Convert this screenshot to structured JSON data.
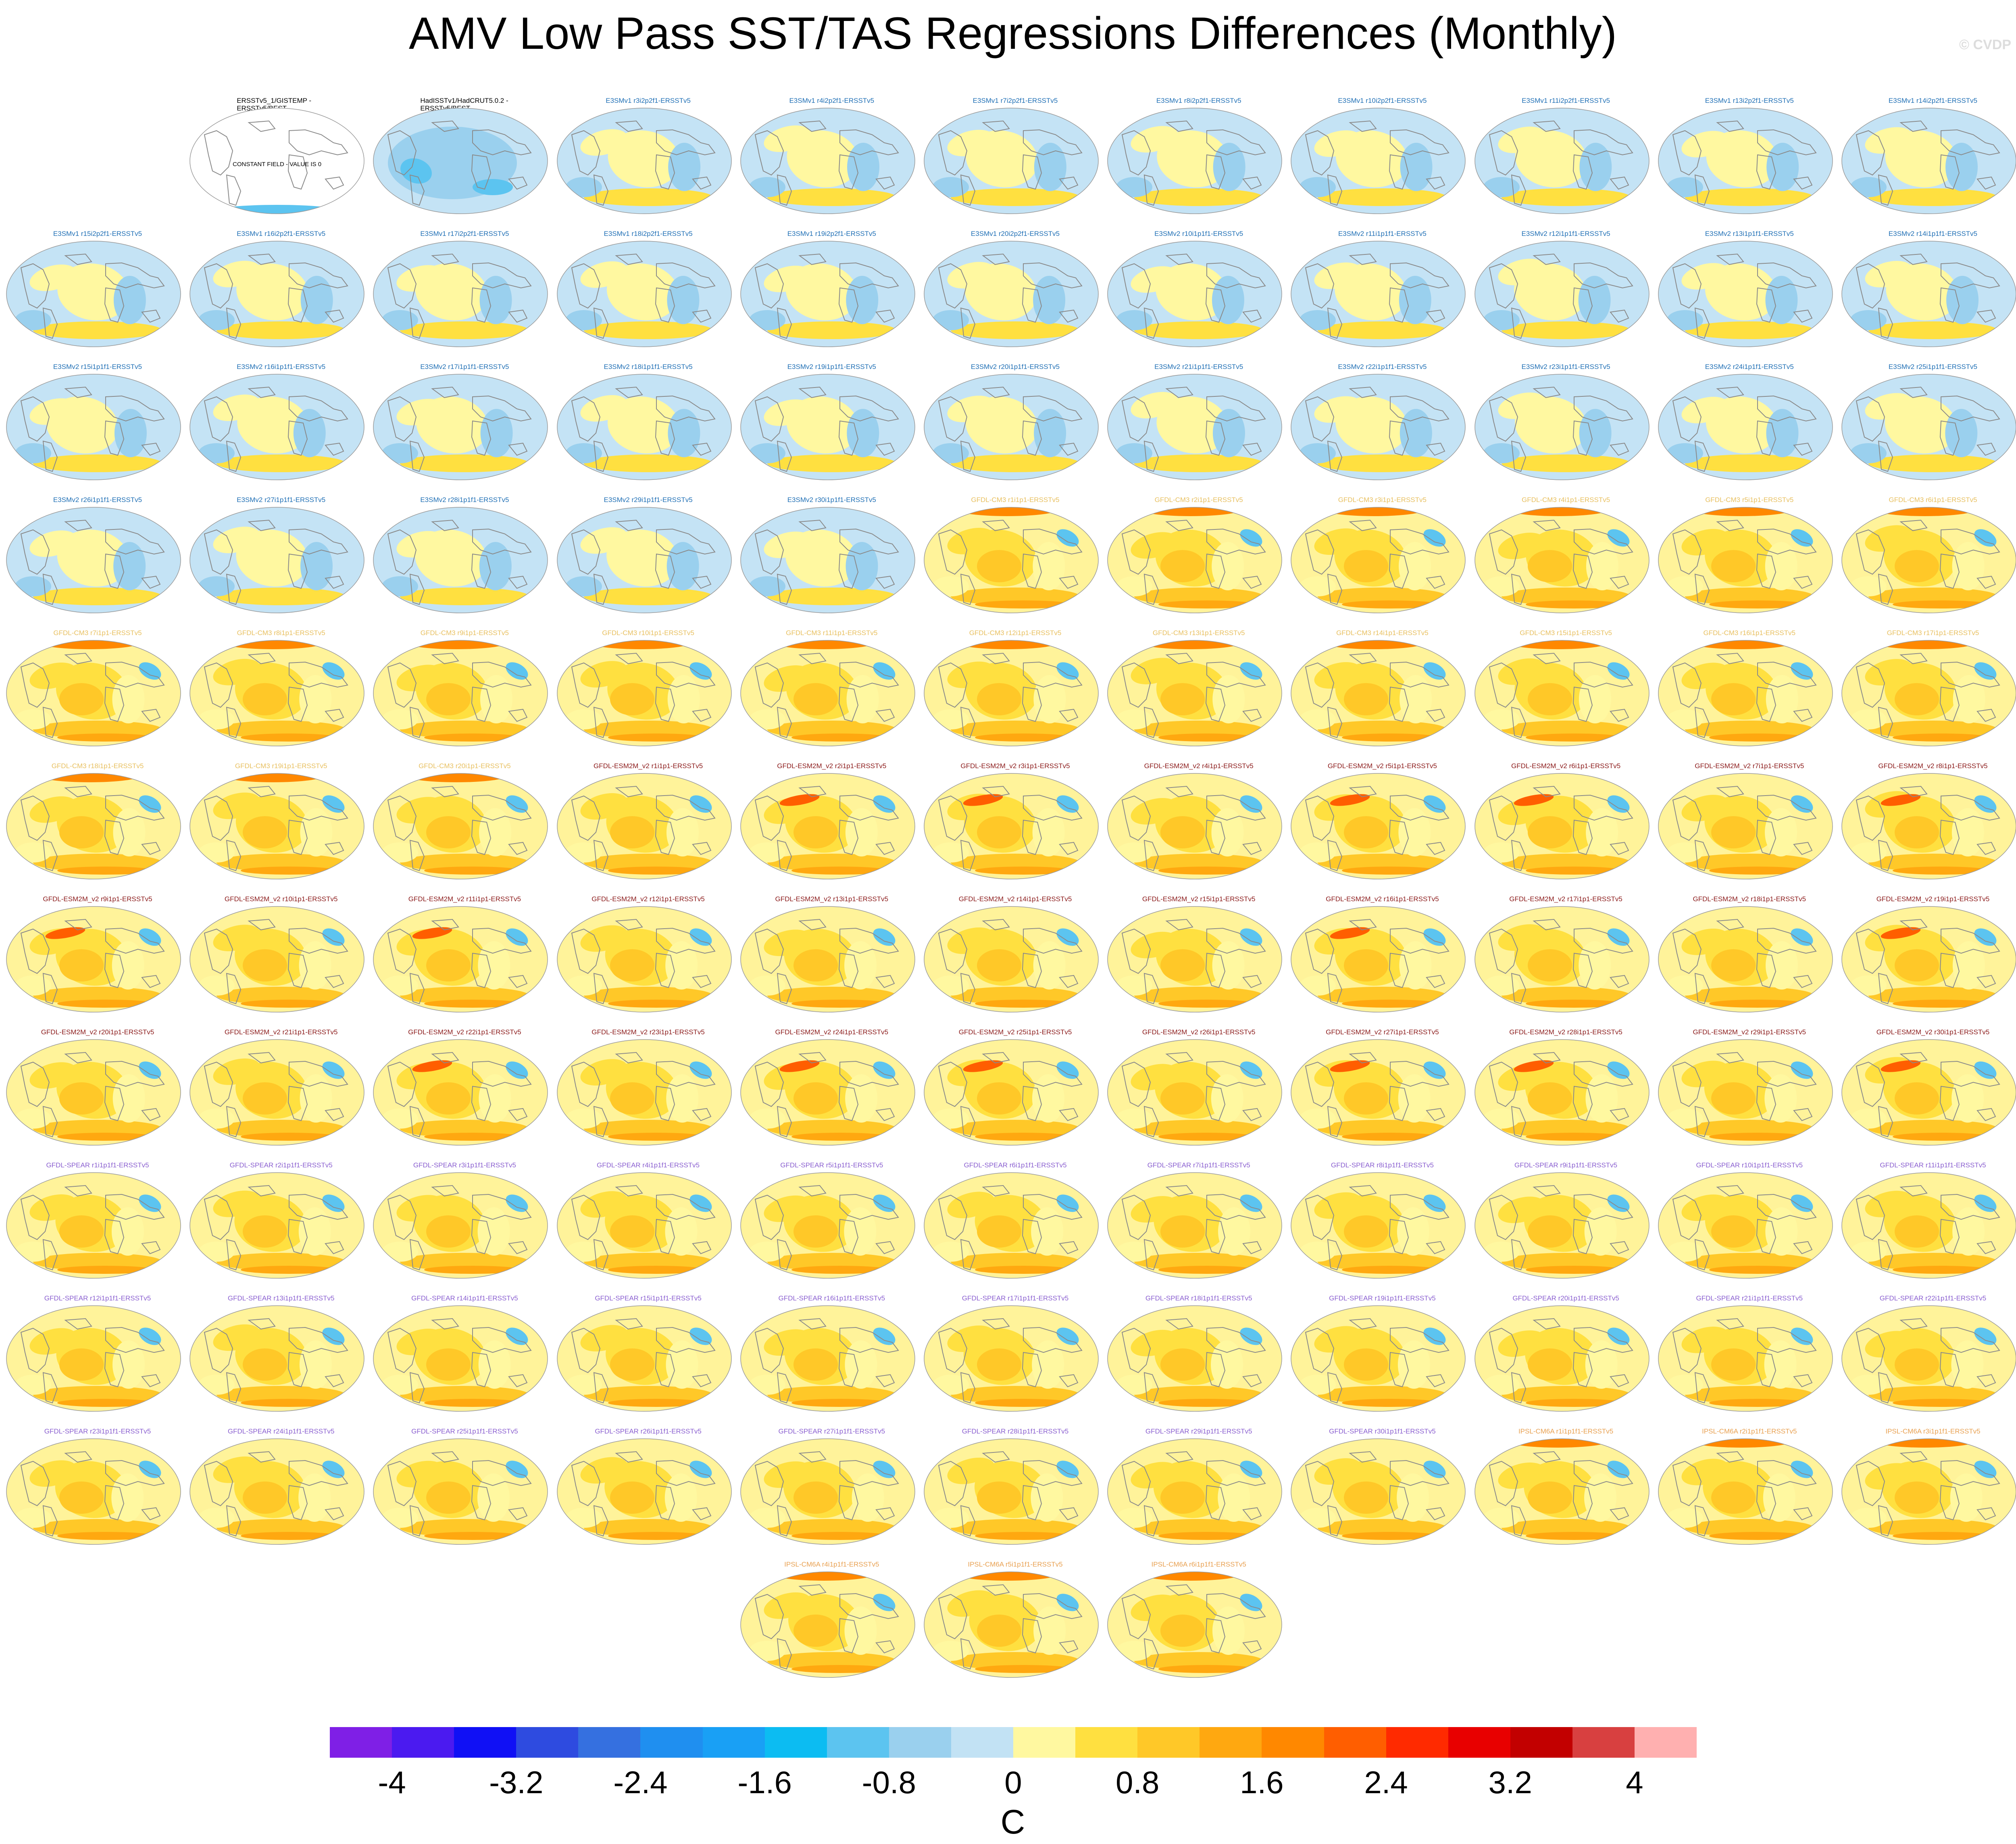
{
  "title": "AMV Low Pass SST/TAS Regressions Differences (Monthly)",
  "watermark": "© CVDP",
  "colors": {
    "e3sm": "#1f6fb5",
    "gfdl_cm3": "#e8c060",
    "gfdl_esm2m": "#8b1a1a",
    "gfdl_spear": "#8a5fd0",
    "ipsl": "#e8a050",
    "obs": "#000000"
  },
  "panels": [
    {
      "label": "ERSSTv5_1/GISTEMP - ERSSTv5/BEST",
      "group": "obs",
      "note": "CONSTANT FIELD - VALUE IS 0"
    },
    {
      "label": "HadISSTv1/HadCRUT5.0.2 - ERSSTv5/BEST",
      "group": "obs"
    },
    {
      "label": "E3SMv1 r3i2p2f1-ERSSTv5",
      "group": "e3sm"
    },
    {
      "label": "E3SMv1 r4i2p2f1-ERSSTv5",
      "group": "e3sm"
    },
    {
      "label": "E3SMv1 r7i2p2f1-ERSSTv5",
      "group": "e3sm"
    },
    {
      "label": "E3SMv1 r8i2p2f1-ERSSTv5",
      "group": "e3sm"
    },
    {
      "label": "E3SMv1 r10i2p2f1-ERSSTv5",
      "group": "e3sm"
    },
    {
      "label": "E3SMv1 r11i2p2f1-ERSSTv5",
      "group": "e3sm"
    },
    {
      "label": "E3SMv1 r13i2p2f1-ERSSTv5",
      "group": "e3sm"
    },
    {
      "label": "E3SMv1 r14i2p2f1-ERSSTv5",
      "group": "e3sm"
    },
    {
      "label": "E3SMv1 r15i2p2f1-ERSSTv5",
      "group": "e3sm"
    },
    {
      "label": "E3SMv1 r16i2p2f1-ERSSTv5",
      "group": "e3sm"
    },
    {
      "label": "E3SMv1 r17i2p2f1-ERSSTv5",
      "group": "e3sm"
    },
    {
      "label": "E3SMv1 r18i2p2f1-ERSSTv5",
      "group": "e3sm"
    },
    {
      "label": "E3SMv1 r19i2p2f1-ERSSTv5",
      "group": "e3sm"
    },
    {
      "label": "E3SMv1 r20i2p2f1-ERSSTv5",
      "group": "e3sm"
    },
    {
      "label": "E3SMv2 r10i1p1f1-ERSSTv5",
      "group": "e3sm"
    },
    {
      "label": "E3SMv2 r11i1p1f1-ERSSTv5",
      "group": "e3sm"
    },
    {
      "label": "E3SMv2 r12i1p1f1-ERSSTv5",
      "group": "e3sm"
    },
    {
      "label": "E3SMv2 r13i1p1f1-ERSSTv5",
      "group": "e3sm"
    },
    {
      "label": "E3SMv2 r14i1p1f1-ERSSTv5",
      "group": "e3sm"
    },
    {
      "label": "E3SMv2 r15i1p1f1-ERSSTv5",
      "group": "e3sm"
    },
    {
      "label": "E3SMv2 r16i1p1f1-ERSSTv5",
      "group": "e3sm"
    },
    {
      "label": "E3SMv2 r17i1p1f1-ERSSTv5",
      "group": "e3sm"
    },
    {
      "label": "E3SMv2 r18i1p1f1-ERSSTv5",
      "group": "e3sm"
    },
    {
      "label": "E3SMv2 r19i1p1f1-ERSSTv5",
      "group": "e3sm"
    },
    {
      "label": "E3SMv2 r20i1p1f1-ERSSTv5",
      "group": "e3sm"
    },
    {
      "label": "E3SMv2 r21i1p1f1-ERSSTv5",
      "group": "e3sm"
    },
    {
      "label": "E3SMv2 r22i1p1f1-ERSSTv5",
      "group": "e3sm"
    },
    {
      "label": "E3SMv2 r23i1p1f1-ERSSTv5",
      "group": "e3sm"
    },
    {
      "label": "E3SMv2 r24i1p1f1-ERSSTv5",
      "group": "e3sm"
    },
    {
      "label": "E3SMv2 r25i1p1f1-ERSSTv5",
      "group": "e3sm"
    },
    {
      "label": "E3SMv2 r26i1p1f1-ERSSTv5",
      "group": "e3sm"
    },
    {
      "label": "E3SMv2 r27i1p1f1-ERSSTv5",
      "group": "e3sm"
    },
    {
      "label": "E3SMv2 r28i1p1f1-ERSSTv5",
      "group": "e3sm"
    },
    {
      "label": "E3SMv2 r29i1p1f1-ERSSTv5",
      "group": "e3sm"
    },
    {
      "label": "E3SMv2 r30i1p1f1-ERSSTv5",
      "group": "e3sm"
    },
    {
      "label": "GFDL-CM3 r1i1p1-ERSSTv5",
      "group": "gfdl_cm3"
    },
    {
      "label": "GFDL-CM3 r2i1p1-ERSSTv5",
      "group": "gfdl_cm3"
    },
    {
      "label": "GFDL-CM3 r3i1p1-ERSSTv5",
      "group": "gfdl_cm3"
    },
    {
      "label": "GFDL-CM3 r4i1p1-ERSSTv5",
      "group": "gfdl_cm3"
    },
    {
      "label": "GFDL-CM3 r5i1p1-ERSSTv5",
      "group": "gfdl_cm3"
    },
    {
      "label": "GFDL-CM3 r6i1p1-ERSSTv5",
      "group": "gfdl_cm3"
    },
    {
      "label": "GFDL-CM3 r7i1p1-ERSSTv5",
      "group": "gfdl_cm3"
    },
    {
      "label": "GFDL-CM3 r8i1p1-ERSSTv5",
      "group": "gfdl_cm3"
    },
    {
      "label": "GFDL-CM3 r9i1p1-ERSSTv5",
      "group": "gfdl_cm3"
    },
    {
      "label": "GFDL-CM3 r10i1p1-ERSSTv5",
      "group": "gfdl_cm3"
    },
    {
      "label": "GFDL-CM3 r11i1p1-ERSSTv5",
      "group": "gfdl_cm3"
    },
    {
      "label": "GFDL-CM3 r12i1p1-ERSSTv5",
      "group": "gfdl_cm3"
    },
    {
      "label": "GFDL-CM3 r13i1p1-ERSSTv5",
      "group": "gfdl_cm3"
    },
    {
      "label": "GFDL-CM3 r14i1p1-ERSSTv5",
      "group": "gfdl_cm3"
    },
    {
      "label": "GFDL-CM3 r15i1p1-ERSSTv5",
      "group": "gfdl_cm3"
    },
    {
      "label": "GFDL-CM3 r16i1p1-ERSSTv5",
      "group": "gfdl_cm3"
    },
    {
      "label": "GFDL-CM3 r17i1p1-ERSSTv5",
      "group": "gfdl_cm3"
    },
    {
      "label": "GFDL-CM3 r18i1p1-ERSSTv5",
      "group": "gfdl_cm3"
    },
    {
      "label": "GFDL-CM3 r19i1p1-ERSSTv5",
      "group": "gfdl_cm3"
    },
    {
      "label": "GFDL-CM3 r20i1p1-ERSSTv5",
      "group": "gfdl_cm3"
    },
    {
      "label": "GFDL-ESM2M_v2 r1i1p1-ERSSTv5",
      "group": "gfdl_esm2m"
    },
    {
      "label": "GFDL-ESM2M_v2 r2i1p1-ERSSTv5",
      "group": "gfdl_esm2m"
    },
    {
      "label": "GFDL-ESM2M_v2 r3i1p1-ERSSTv5",
      "group": "gfdl_esm2m"
    },
    {
      "label": "GFDL-ESM2M_v2 r4i1p1-ERSSTv5",
      "group": "gfdl_esm2m"
    },
    {
      "label": "GFDL-ESM2M_v2 r5i1p1-ERSSTv5",
      "group": "gfdl_esm2m"
    },
    {
      "label": "GFDL-ESM2M_v2 r6i1p1-ERSSTv5",
      "group": "gfdl_esm2m"
    },
    {
      "label": "GFDL-ESM2M_v2 r7i1p1-ERSSTv5",
      "group": "gfdl_esm2m"
    },
    {
      "label": "GFDL-ESM2M_v2 r8i1p1-ERSSTv5",
      "group": "gfdl_esm2m"
    },
    {
      "label": "GFDL-ESM2M_v2 r9i1p1-ERSSTv5",
      "group": "gfdl_esm2m"
    },
    {
      "label": "GFDL-ESM2M_v2 r10i1p1-ERSSTv5",
      "group": "gfdl_esm2m"
    },
    {
      "label": "GFDL-ESM2M_v2 r11i1p1-ERSSTv5",
      "group": "gfdl_esm2m"
    },
    {
      "label": "GFDL-ESM2M_v2 r12i1p1-ERSSTv5",
      "group": "gfdl_esm2m"
    },
    {
      "label": "GFDL-ESM2M_v2 r13i1p1-ERSSTv5",
      "group": "gfdl_esm2m"
    },
    {
      "label": "GFDL-ESM2M_v2 r14i1p1-ERSSTv5",
      "group": "gfdl_esm2m"
    },
    {
      "label": "GFDL-ESM2M_v2 r15i1p1-ERSSTv5",
      "group": "gfdl_esm2m"
    },
    {
      "label": "GFDL-ESM2M_v2 r16i1p1-ERSSTv5",
      "group": "gfdl_esm2m"
    },
    {
      "label": "GFDL-ESM2M_v2 r17i1p1-ERSSTv5",
      "group": "gfdl_esm2m"
    },
    {
      "label": "GFDL-ESM2M_v2 r18i1p1-ERSSTv5",
      "group": "gfdl_esm2m"
    },
    {
      "label": "GFDL-ESM2M_v2 r19i1p1-ERSSTv5",
      "group": "gfdl_esm2m"
    },
    {
      "label": "GFDL-ESM2M_v2 r20i1p1-ERSSTv5",
      "group": "gfdl_esm2m"
    },
    {
      "label": "GFDL-ESM2M_v2 r21i1p1-ERSSTv5",
      "group": "gfdl_esm2m"
    },
    {
      "label": "GFDL-ESM2M_v2 r22i1p1-ERSSTv5",
      "group": "gfdl_esm2m"
    },
    {
      "label": "GFDL-ESM2M_v2 r23i1p1-ERSSTv5",
      "group": "gfdl_esm2m"
    },
    {
      "label": "GFDL-ESM2M_v2 r24i1p1-ERSSTv5",
      "group": "gfdl_esm2m"
    },
    {
      "label": "GFDL-ESM2M_v2 r25i1p1-ERSSTv5",
      "group": "gfdl_esm2m"
    },
    {
      "label": "GFDL-ESM2M_v2 r26i1p1-ERSSTv5",
      "group": "gfdl_esm2m"
    },
    {
      "label": "GFDL-ESM2M_v2 r27i1p1-ERSSTv5",
      "group": "gfdl_esm2m"
    },
    {
      "label": "GFDL-ESM2M_v2 r28i1p1-ERSSTv5",
      "group": "gfdl_esm2m"
    },
    {
      "label": "GFDL-ESM2M_v2 r29i1p1-ERSSTv5",
      "group": "gfdl_esm2m"
    },
    {
      "label": "GFDL-ESM2M_v2 r30i1p1-ERSSTv5",
      "group": "gfdl_esm2m"
    },
    {
      "label": "GFDL-SPEAR r1i1p1f1-ERSSTv5",
      "group": "gfdl_spear"
    },
    {
      "label": "GFDL-SPEAR r2i1p1f1-ERSSTv5",
      "group": "gfdl_spear"
    },
    {
      "label": "GFDL-SPEAR r3i1p1f1-ERSSTv5",
      "group": "gfdl_spear"
    },
    {
      "label": "GFDL-SPEAR r4i1p1f1-ERSSTv5",
      "group": "gfdl_spear"
    },
    {
      "label": "GFDL-SPEAR r5i1p1f1-ERSSTv5",
      "group": "gfdl_spear"
    },
    {
      "label": "GFDL-SPEAR r6i1p1f1-ERSSTv5",
      "group": "gfdl_spear"
    },
    {
      "label": "GFDL-SPEAR r7i1p1f1-ERSSTv5",
      "group": "gfdl_spear"
    },
    {
      "label": "GFDL-SPEAR r8i1p1f1-ERSSTv5",
      "group": "gfdl_spear"
    },
    {
      "label": "GFDL-SPEAR r9i1p1f1-ERSSTv5",
      "group": "gfdl_spear"
    },
    {
      "label": "GFDL-SPEAR r10i1p1f1-ERSSTv5",
      "group": "gfdl_spear"
    },
    {
      "label": "GFDL-SPEAR r11i1p1f1-ERSSTv5",
      "group": "gfdl_spear"
    },
    {
      "label": "GFDL-SPEAR r12i1p1f1-ERSSTv5",
      "group": "gfdl_spear"
    },
    {
      "label": "GFDL-SPEAR r13i1p1f1-ERSSTv5",
      "group": "gfdl_spear"
    },
    {
      "label": "GFDL-SPEAR r14i1p1f1-ERSSTv5",
      "group": "gfdl_spear"
    },
    {
      "label": "GFDL-SPEAR r15i1p1f1-ERSSTv5",
      "group": "gfdl_spear"
    },
    {
      "label": "GFDL-SPEAR r16i1p1f1-ERSSTv5",
      "group": "gfdl_spear"
    },
    {
      "label": "GFDL-SPEAR r17i1p1f1-ERSSTv5",
      "group": "gfdl_spear"
    },
    {
      "label": "GFDL-SPEAR r18i1p1f1-ERSSTv5",
      "group": "gfdl_spear"
    },
    {
      "label": "GFDL-SPEAR r19i1p1f1-ERSSTv5",
      "group": "gfdl_spear"
    },
    {
      "label": "GFDL-SPEAR r20i1p1f1-ERSSTv5",
      "group": "gfdl_spear"
    },
    {
      "label": "GFDL-SPEAR r21i1p1f1-ERSSTv5",
      "group": "gfdl_spear"
    },
    {
      "label": "GFDL-SPEAR r22i1p1f1-ERSSTv5",
      "group": "gfdl_spear"
    },
    {
      "label": "GFDL-SPEAR r23i1p1f1-ERSSTv5",
      "group": "gfdl_spear"
    },
    {
      "label": "GFDL-SPEAR r24i1p1f1-ERSSTv5",
      "group": "gfdl_spear"
    },
    {
      "label": "GFDL-SPEAR r25i1p1f1-ERSSTv5",
      "group": "gfdl_spear"
    },
    {
      "label": "GFDL-SPEAR r26i1p1f1-ERSSTv5",
      "group": "gfdl_spear"
    },
    {
      "label": "GFDL-SPEAR r27i1p1f1-ERSSTv5",
      "group": "gfdl_spear"
    },
    {
      "label": "GFDL-SPEAR r28i1p1f1-ERSSTv5",
      "group": "gfdl_spear"
    },
    {
      "label": "GFDL-SPEAR r29i1p1f1-ERSSTv5",
      "group": "gfdl_spear"
    },
    {
      "label": "GFDL-SPEAR r30i1p1f1-ERSSTv5",
      "group": "gfdl_spear"
    },
    {
      "label": "IPSL-CM6A r1i1p1f1-ERSSTv5",
      "group": "ipsl"
    },
    {
      "label": "IPSL-CM6A r2i1p1f1-ERSSTv5",
      "group": "ipsl"
    },
    {
      "label": "IPSL-CM6A r3i1p1f1-ERSSTv5",
      "group": "ipsl"
    },
    {
      "label": "IPSL-CM6A r4i1p1f1-ERSSTv5",
      "group": "ipsl"
    },
    {
      "label": "IPSL-CM6A r5i1p1f1-ERSSTv5",
      "group": "ipsl"
    },
    {
      "label": "IPSL-CM6A r6i1p1f1-ERSSTv5",
      "group": "ipsl"
    }
  ],
  "colorbar": {
    "colors": [
      "#7f1fe6",
      "#4b1af0",
      "#1010f5",
      "#2e4be0",
      "#3570e0",
      "#1f8ff0",
      "#19a0f5",
      "#0cbcf2",
      "#5cc4f0",
      "#9ad0ee",
      "#c2e2f4",
      "#fff8a0",
      "#ffe040",
      "#ffc828",
      "#ffa810",
      "#ff8800",
      "#ff5e00",
      "#ff2a00",
      "#e80000",
      "#c20000",
      "#d84040",
      "#ffb0b0"
    ],
    "tick_labels": [
      "-4",
      "-3.2",
      "-2.4",
      "-1.6",
      "-0.8",
      "0",
      "0.8",
      "1.6",
      "2.4",
      "3.2",
      "4"
    ],
    "units": "C"
  }
}
